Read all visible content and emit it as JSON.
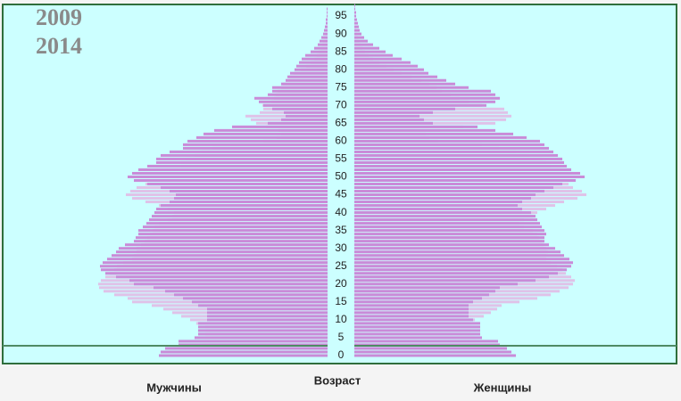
{
  "chart_data": {
    "type": "pyramid",
    "axis_label": "Возраст",
    "sides": [
      "Мужчины",
      "Женщины"
    ],
    "categories": [
      0,
      null,
      null,
      null,
      null,
      5,
      null,
      null,
      null,
      null,
      10,
      null,
      null,
      null,
      null,
      15,
      null,
      null,
      null,
      null,
      20,
      null,
      null,
      null,
      null,
      25,
      null,
      null,
      null,
      null,
      30,
      null,
      null,
      null,
      null,
      35,
      null,
      null,
      null,
      null,
      40,
      null,
      null,
      null,
      null,
      45,
      null,
      null,
      null,
      null,
      50,
      null,
      null,
      null,
      null,
      55,
      null,
      null,
      null,
      null,
      60,
      null,
      null,
      null,
      null,
      65,
      null,
      null,
      null,
      null,
      70,
      null,
      null,
      null,
      null,
      75,
      null,
      null,
      null,
      null,
      80,
      null,
      null,
      null,
      null,
      85,
      null,
      null,
      null,
      null,
      90,
      null,
      null,
      null,
      null,
      95,
      null,
      null,
      null,
      null
    ],
    "xlim": [
      0,
      364
    ],
    "series": [
      {
        "name": "2009",
        "color": "#dfc2e8",
        "men": [
          150,
          148,
          145,
          140,
          138,
          137,
          137,
          137,
          137,
          147,
          154,
          164,
          174,
          184,
          197,
          219,
          224,
          239,
          251,
          256,
          257,
          254,
          249,
          244,
          239,
          236,
          229,
          219,
          217,
          214,
          214,
          209,
          205,
          202,
          199,
          196,
          194,
          189,
          179,
          174,
          172,
          179,
          189,
          204,
          219,
          226,
          221,
          214,
          204,
          194,
          194,
          189,
          179,
          164,
          164,
          159,
          149,
          141,
          129,
          109,
          72,
          57,
          52,
          55,
          69,
          80,
          86,
          92,
          76,
          72,
          73,
          63,
          60,
          58,
          56,
          52,
          50,
          47,
          43,
          38,
          30,
          24,
          19,
          15,
          12,
          10,
          8,
          6,
          5,
          4,
          3,
          2,
          2,
          1,
          1,
          1,
          0,
          0,
          0,
          0
        ],
        "women": [
          150,
          147,
          144,
          140,
          137,
          135,
          130,
          130,
          130,
          130,
          135,
          145,
          153,
          160,
          165,
          185,
          205,
          220,
          230,
          240,
          245,
          247,
          243,
          237,
          233,
          227,
          220,
          215,
          215,
          217,
          215,
          212,
          210,
          207,
          205,
          200,
          190,
          185,
          190,
          200,
          205,
          215,
          225,
          235,
          250,
          260,
          255,
          245,
          240,
          237,
          235,
          230,
          225,
          220,
          215,
          211,
          196,
          181,
          162,
          143,
          94,
          84,
          80,
          96,
          122,
          158,
          170,
          176,
          172,
          168,
          143,
          128,
          118,
          108,
          98,
          92,
          84,
          75,
          64,
          53,
          44,
          36,
          28,
          21,
          16,
          12,
          9,
          7,
          5,
          4,
          3,
          2,
          2,
          1,
          1,
          0,
          0,
          0,
          0,
          0
        ]
      },
      {
        "name": "2014",
        "color": "#c98bd8",
        "men": [
          189,
          187,
          182,
          167,
          167,
          149,
          145,
          145,
          145,
          145,
          135,
          135,
          135,
          135,
          145,
          152,
          162,
          172,
          182,
          195,
          217,
          222,
          237,
          249,
          254,
          255,
          252,
          247,
          242,
          237,
          234,
          227,
          217,
          215,
          212,
          212,
          207,
          203,
          200,
          197,
          194,
          192,
          187,
          177,
          172,
          170,
          177,
          187,
          202,
          217,
          224,
          219,
          212,
          202,
          192,
          192,
          187,
          177,
          162,
          162,
          157,
          147,
          139,
          127,
          107,
          67,
          52,
          47,
          49,
          62,
          72,
          77,
          82,
          67,
          62,
          62,
          52,
          47,
          45,
          42,
          37,
          35,
          32,
          29,
          25,
          19,
          15,
          11,
          9,
          7,
          5,
          4,
          3,
          2,
          2,
          1,
          1,
          1,
          0,
          0
        ],
        "women": [
          181,
          176,
          171,
          163,
          161,
          143,
          141,
          141,
          141,
          141,
          133,
          128,
          128,
          128,
          128,
          133,
          143,
          151,
          158,
          163,
          183,
          203,
          218,
          228,
          238,
          243,
          245,
          241,
          235,
          231,
          225,
          218,
          213,
          213,
          215,
          213,
          210,
          208,
          205,
          203,
          198,
          188,
          183,
          188,
          198,
          203,
          213,
          223,
          233,
          248,
          258,
          253,
          243,
          238,
          235,
          233,
          228,
          223,
          218,
          213,
          208,
          193,
          178,
          158,
          138,
          88,
          78,
          73,
          88,
          113,
          148,
          158,
          163,
          158,
          153,
          128,
          113,
          103,
          93,
          83,
          78,
          71,
          63,
          53,
          43,
          35,
          28,
          21,
          15,
          11,
          8,
          6,
          5,
          4,
          3,
          2,
          2,
          1,
          1,
          0
        ]
      }
    ]
  }
}
